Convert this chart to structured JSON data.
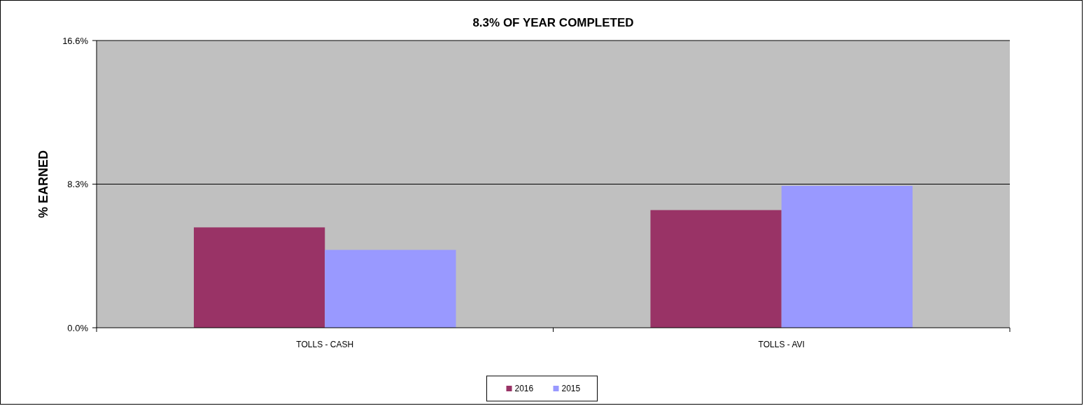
{
  "chart_data": {
    "type": "bar",
    "title": "8.3% OF YEAR COMPLETED",
    "ylabel": "% EARNED",
    "categories": [
      "TOLLS - CASH",
      "TOLLS - AVI"
    ],
    "series": [
      {
        "name": "2016",
        "color": "#993366",
        "values": [
          5.8,
          6.8
        ]
      },
      {
        "name": "2015",
        "color": "#9999ff",
        "values": [
          4.5,
          8.2
        ]
      }
    ],
    "ylim": [
      0,
      16.6
    ],
    "yticks": [
      {
        "value": 0,
        "label": "0.0%"
      },
      {
        "value": 8.3,
        "label": "8.3%"
      },
      {
        "value": 16.6,
        "label": "16.6%"
      }
    ],
    "grid": "y",
    "legend": "bottom"
  }
}
